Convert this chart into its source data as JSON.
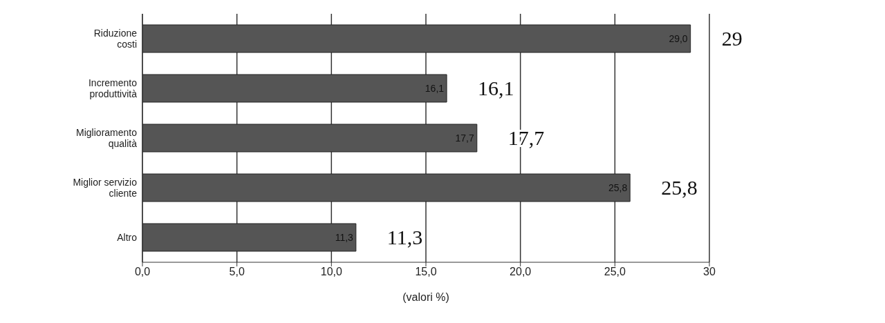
{
  "chart_data": {
    "type": "bar",
    "orientation": "horizontal",
    "categories": [
      "Riduzione\ncosti",
      "Incremento\nproduttività",
      "Miglioramento\nqualità",
      "Miglior servizio\ncliente",
      "Altro"
    ],
    "values": [
      29.0,
      16.1,
      17.7,
      25.8,
      11.3
    ],
    "value_labels": [
      "29,0",
      "16,1",
      "17,7",
      "25,8",
      "11,3"
    ],
    "color": "#555555",
    "xlim": [
      0,
      30
    ],
    "xticks": [
      {
        "value": 0,
        "label": "0,0"
      },
      {
        "value": 5,
        "label": "5,0"
      },
      {
        "value": 10,
        "label": "10,0"
      },
      {
        "value": 15,
        "label": "15,0"
      },
      {
        "value": 20,
        "label": "20,0"
      },
      {
        "value": 25,
        "label": "25,0"
      },
      {
        "value": 30,
        "label": "30"
      }
    ],
    "xlabel": "(valori %)",
    "grid": "x",
    "annotations": [
      "29",
      "16,1",
      "17,7",
      "25,8",
      "11,3"
    ]
  }
}
